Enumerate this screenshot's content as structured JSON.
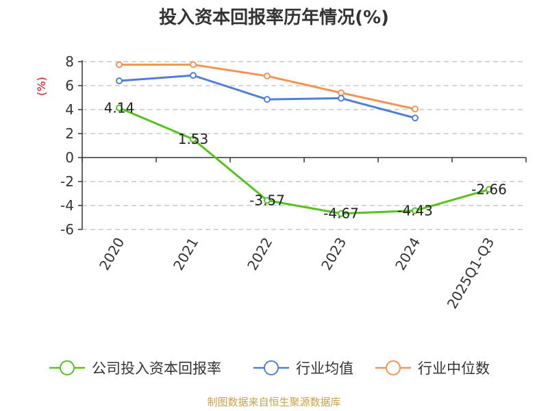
{
  "chart_data": {
    "type": "line",
    "title": "投入资本回报率历年情况(%)",
    "ylabel": "(%)",
    "categories": [
      "2020",
      "2021",
      "2022",
      "2023",
      "2024",
      "2025Q1-Q3"
    ],
    "ylim": [
      -6,
      8
    ],
    "yticks": [
      8,
      6,
      4,
      2,
      0,
      -2,
      -4,
      -6
    ],
    "grid": true,
    "legend_position": "bottom",
    "series": [
      {
        "name": "公司投入资本回报率",
        "color": "#52c41a",
        "values": [
          4.14,
          1.53,
          -3.57,
          -4.67,
          -4.43,
          -2.66
        ],
        "labels": [
          "4.14",
          "1.53",
          "-3.57",
          "-4.67",
          "-4.43",
          "-2.66"
        ]
      },
      {
        "name": "行业均值",
        "color": "#4f7fdb",
        "values": [
          6.4,
          6.85,
          4.85,
          4.95,
          3.3,
          null
        ]
      },
      {
        "name": "行业中位数",
        "color": "#f79352",
        "values": [
          7.75,
          7.75,
          6.8,
          5.4,
          4.05,
          null
        ]
      }
    ],
    "source": "制图数据来自恒生聚源数据库"
  }
}
